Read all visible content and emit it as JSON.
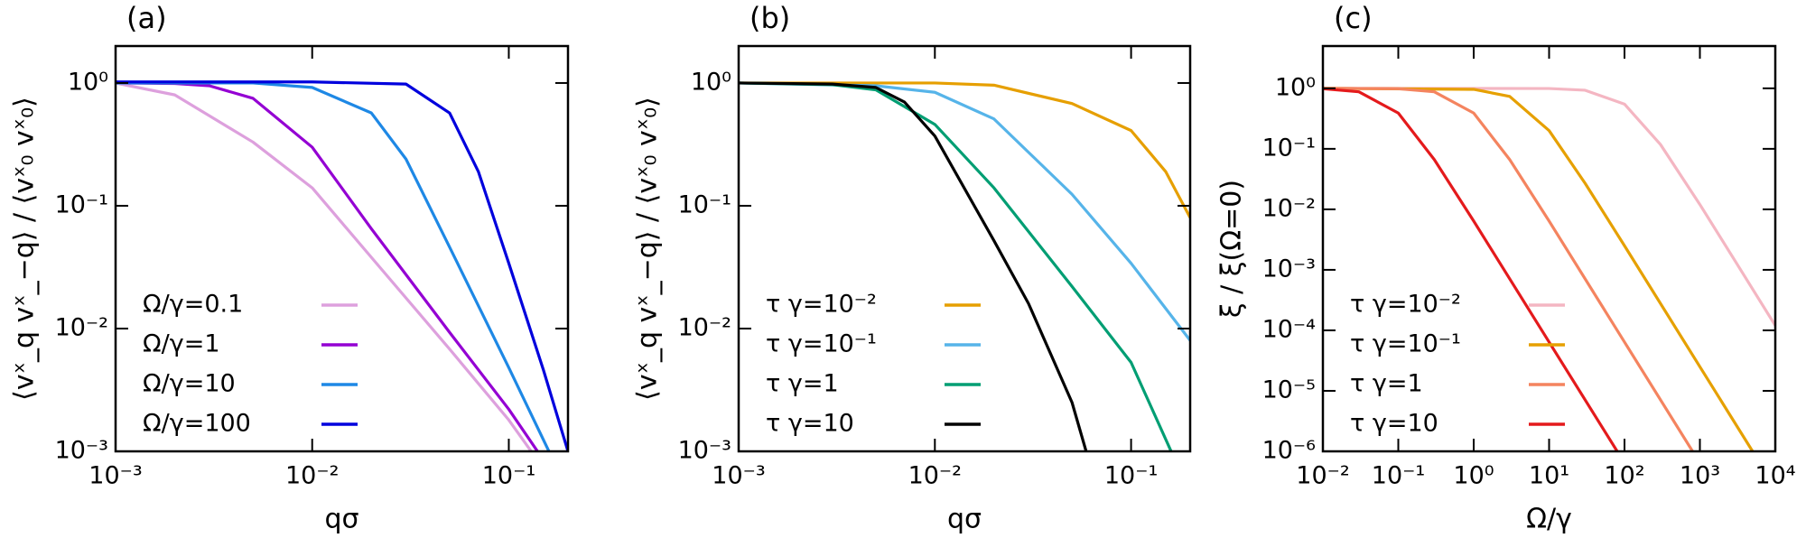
{
  "chart_data": [
    {
      "type": "line",
      "title": "(a)",
      "xlabel": "qσ",
      "ylabel": "⟨vˣ_q vˣ_−q⟩ / ⟨vˣ₀ vˣ₀⟩",
      "xscale": "log",
      "yscale": "log",
      "legend": "lower left",
      "xlim": [
        0.001,
        0.2
      ],
      "ylim": [
        0.001,
        2
      ],
      "xticks": [
        {
          "value": 0.001,
          "label": "10⁻³"
        },
        {
          "value": 0.01,
          "label": "10⁻²"
        },
        {
          "value": 0.1,
          "label": "10⁻¹"
        }
      ],
      "yticks": [
        {
          "value": 0.001,
          "label": "10⁻³"
        },
        {
          "value": 0.01,
          "label": "10⁻²"
        },
        {
          "value": 0.1,
          "label": "10⁻¹"
        },
        {
          "value": 1,
          "label": "10⁰"
        }
      ],
      "series": [
        {
          "name": "Ω/γ=0.1",
          "color": "#dda0dd",
          "x": [
            0.001,
            0.002,
            0.005,
            0.01,
            0.02,
            0.05,
            0.1,
            0.13
          ],
          "values": [
            1,
            0.8,
            0.33,
            0.14,
            0.038,
            0.0068,
            0.0018,
            0.001
          ]
        },
        {
          "name": "Ω/γ=1",
          "color": "#9400d3",
          "x": [
            0.001,
            0.002,
            0.003,
            0.005,
            0.01,
            0.02,
            0.05,
            0.1,
            0.14
          ],
          "values": [
            1,
            0.99,
            0.95,
            0.75,
            0.3,
            0.065,
            0.0093,
            0.0022,
            0.001
          ]
        },
        {
          "name": "Ω/γ=10",
          "color": "#1e88e5",
          "x": [
            0.001,
            0.005,
            0.01,
            0.02,
            0.03,
            0.05,
            0.1,
            0.16
          ],
          "values": [
            1,
            1,
            0.92,
            0.57,
            0.24,
            0.046,
            0.0048,
            0.001
          ]
        },
        {
          "name": "Ω/γ=100",
          "color": "#0000dd",
          "x": [
            0.001,
            0.01,
            0.03,
            0.05,
            0.07,
            0.1,
            0.15,
            0.2
          ],
          "values": [
            1.02,
            1.02,
            0.98,
            0.57,
            0.19,
            0.034,
            0.0046,
            0.001
          ]
        }
      ]
    },
    {
      "type": "line",
      "title": "(b)",
      "xlabel": "qσ",
      "ylabel": "⟨vˣ_q vˣ_−q⟩ / ⟨vˣ₀ vˣ₀⟩",
      "xscale": "log",
      "yscale": "log",
      "legend": "lower left",
      "xlim": [
        0.001,
        0.2
      ],
      "ylim": [
        0.001,
        2
      ],
      "xticks": [
        {
          "value": 0.001,
          "label": "10⁻³"
        },
        {
          "value": 0.01,
          "label": "10⁻²"
        },
        {
          "value": 0.1,
          "label": "10⁻¹"
        }
      ],
      "yticks": [
        {
          "value": 0.001,
          "label": "10⁻³"
        },
        {
          "value": 0.01,
          "label": "10⁻²"
        },
        {
          "value": 0.1,
          "label": "10⁻¹"
        },
        {
          "value": 1,
          "label": "10⁰"
        }
      ],
      "series": [
        {
          "name": "τ γ=10⁻²",
          "color": "#e69f00",
          "x": [
            0.001,
            0.01,
            0.02,
            0.05,
            0.1,
            0.15,
            0.2
          ],
          "values": [
            1,
            1,
            0.96,
            0.68,
            0.41,
            0.19,
            0.08
          ]
        },
        {
          "name": "τ γ=10⁻¹",
          "color": "#56b4e9",
          "x": [
            0.001,
            0.005,
            0.01,
            0.02,
            0.05,
            0.1,
            0.2
          ],
          "values": [
            1,
            0.95,
            0.84,
            0.51,
            0.124,
            0.034,
            0.008
          ]
        },
        {
          "name": "τ γ=1",
          "color": "#009e73",
          "x": [
            0.001,
            0.003,
            0.005,
            0.01,
            0.02,
            0.05,
            0.1,
            0.16
          ],
          "values": [
            1,
            0.97,
            0.88,
            0.46,
            0.14,
            0.022,
            0.0053,
            0.001
          ]
        },
        {
          "name": "τ γ=10",
          "color": "#000000",
          "x": [
            0.001,
            0.003,
            0.005,
            0.007,
            0.01,
            0.02,
            0.03,
            0.05,
            0.059
          ],
          "values": [
            1,
            0.98,
            0.92,
            0.7,
            0.37,
            0.052,
            0.016,
            0.0025,
            0.001
          ]
        }
      ]
    },
    {
      "type": "line",
      "title": "(c)",
      "xlabel": "Ω/γ",
      "ylabel": "ξ / ξ(Ω=0)",
      "xscale": "log",
      "yscale": "log",
      "legend": "lower left",
      "xlim": [
        0.01,
        10000
      ],
      "ylim": [
        1e-06,
        5
      ],
      "xticks": [
        {
          "value": 0.01,
          "label": "10⁻²"
        },
        {
          "value": 0.1,
          "label": "10⁻¹"
        },
        {
          "value": 1,
          "label": "10⁰"
        },
        {
          "value": 10,
          "label": "10¹"
        },
        {
          "value": 100,
          "label": "10²"
        },
        {
          "value": 1000,
          "label": "10³"
        },
        {
          "value": 10000,
          "label": "10⁴"
        }
      ],
      "yticks": [
        {
          "value": 1e-06,
          "label": "10⁻⁶"
        },
        {
          "value": 1e-05,
          "label": "10⁻⁵"
        },
        {
          "value": 0.0001,
          "label": "10⁻⁴"
        },
        {
          "value": 0.001,
          "label": "10⁻³"
        },
        {
          "value": 0.01,
          "label": "10⁻²"
        },
        {
          "value": 0.1,
          "label": "10⁻¹"
        },
        {
          "value": 1,
          "label": "10⁰"
        }
      ],
      "series": [
        {
          "name": "τ γ=10⁻²",
          "color": "#f4b6c2",
          "x": [
            0.01,
            10,
            30,
            100,
            300,
            1000,
            3000,
            10000
          ],
          "values": [
            1,
            0.992,
            0.93,
            0.548,
            0.118,
            0.012,
            0.00134,
            0.00012
          ]
        },
        {
          "name": "τ γ=10⁻¹",
          "color": "#e6a000",
          "x": [
            0.01,
            1,
            3,
            10,
            30,
            100,
            1000,
            5000
          ],
          "values": [
            1,
            0.962,
            0.735,
            0.2,
            0.027,
            0.0025,
            2.5e-05,
            1e-06
          ]
        },
        {
          "name": "τ γ=1",
          "color": "#f4845f",
          "x": [
            0.01,
            0.1,
            0.3,
            1,
            3,
            10,
            100,
            800
          ],
          "values": [
            1,
            0.985,
            0.877,
            0.39,
            0.0664,
            0.0064,
            6.4e-05,
            1e-06
          ]
        },
        {
          "name": "τ γ=10",
          "color": "#e41a1c",
          "x": [
            0.01,
            0.03,
            0.1,
            0.3,
            1,
            10,
            80
          ],
          "values": [
            0.985,
            0.877,
            0.39,
            0.0664,
            0.0064,
            6.4e-05,
            1e-06
          ]
        }
      ]
    }
  ]
}
